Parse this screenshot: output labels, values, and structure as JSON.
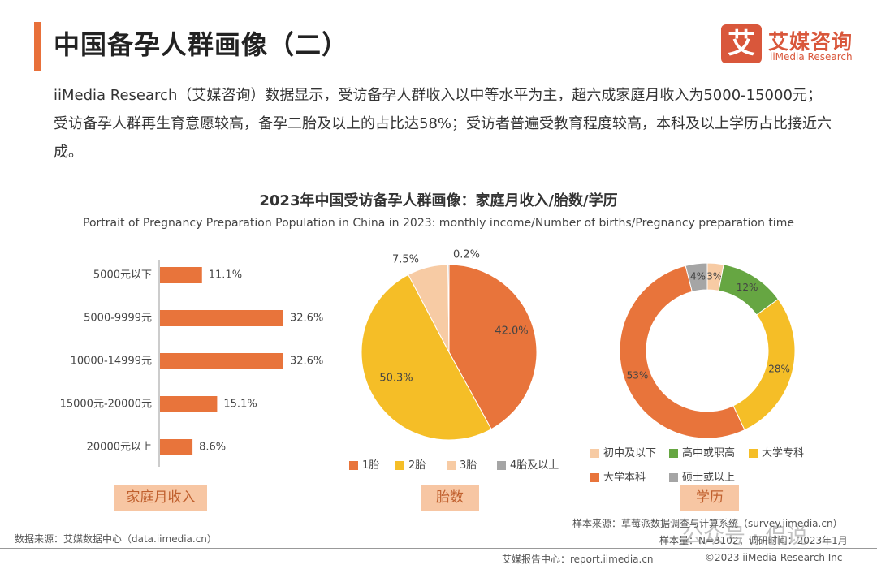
{
  "header": {
    "title": "中国备孕人群画像（二）",
    "logo_mark": "艾",
    "logo_cn": "艾媒咨询",
    "logo_en": "iiMedia Research"
  },
  "intro": "iiMedia Research（艾媒咨询）数据显示，受访备孕人群收入以中等水平为主，超六成家庭月收入为5000-15000元；受访备孕人群再生育意愿较高，备孕二胎及以上的占比达58%；受访者普遍受教育程度较高，本科及以上学历占比接近六成。",
  "chart_title": "2023年中国受访备孕人群画像：家庭月收入/胎数/学历",
  "chart_subtitle": "Portrait of Pregnancy Preparation Population in China in 2023: monthly income/Number of births/Pregnancy preparation time",
  "colors": {
    "accent": "#e8703a",
    "orange": "#e8743b",
    "yellow": "#f5be27",
    "peach": "#f7cba4",
    "gray": "#a5a5a5",
    "green": "#66a642",
    "label_bg": "#f7c6a3"
  },
  "chart_data": [
    {
      "type": "bar",
      "orientation": "horizontal",
      "categories": [
        "5000元以下",
        "5000-9999元",
        "10000-14999元",
        "15000元-20000元",
        "20000元以上"
      ],
      "values": [
        11.1,
        32.6,
        32.6,
        15.1,
        8.6
      ],
      "value_labels": [
        "11.1%",
        "32.6%",
        "32.6%",
        "15.1%",
        "8.6%"
      ],
      "xlim": [
        0,
        32.6
      ],
      "label": "家庭月收入"
    },
    {
      "type": "pie",
      "categories": [
        "1胎",
        "2胎",
        "3胎",
        "4胎及以上"
      ],
      "values": [
        42.0,
        50.3,
        7.5,
        0.2
      ],
      "value_labels": [
        "42.0%",
        "50.3%",
        "7.5%",
        "0.2%"
      ],
      "label": "胎数"
    },
    {
      "type": "pie",
      "variant": "donut",
      "categories": [
        "初中及以下",
        "高中或职高",
        "大学专科",
        "大学本科",
        "硕士或以上"
      ],
      "values": [
        3,
        12,
        28,
        53,
        4
      ],
      "value_labels": [
        "3%",
        "12%",
        "28%",
        "53%",
        "4%"
      ],
      "label": "学历"
    }
  ],
  "sources": {
    "left": "数据来源：艾媒数据中心（data.iimedia.cn）",
    "right_line1": "样本来源：草莓派数据调查与计算系统（survey.iimedia.cn）",
    "right_line2": "样本量：N=3102；调研时间：2023年1月"
  },
  "footer": {
    "left": "艾媒报告中心：report.iimedia.cn",
    "right": "©2023  iiMedia Research  Inc"
  },
  "watermark": "公众号 · 侃说"
}
